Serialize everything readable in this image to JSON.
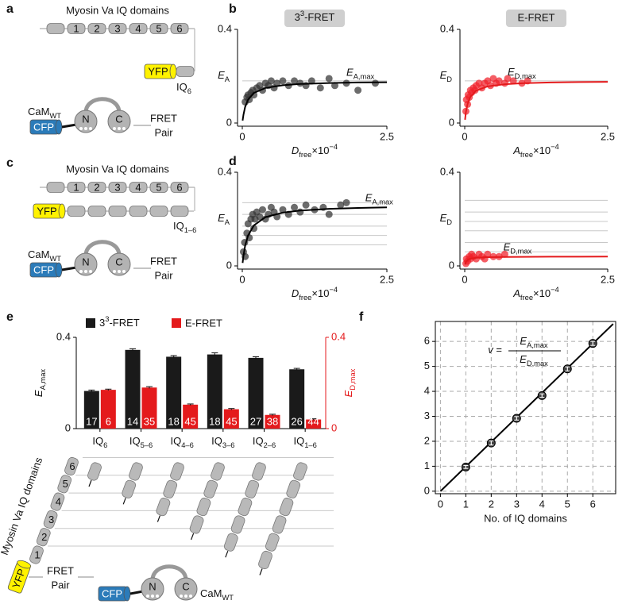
{
  "panel_labels": [
    "a",
    "b",
    "c",
    "d",
    "e",
    "f"
  ],
  "diagrams": {
    "a": {
      "title": "Myosin Va IQ domains",
      "domains": [
        "1",
        "2",
        "3",
        "4",
        "5",
        "6"
      ],
      "yfp": "YFP",
      "construct": [
        {
          "text": "IQ"
        },
        {
          "text": "6",
          "style": "sub"
        }
      ],
      "cam": [
        {
          "text": "CaM"
        },
        {
          "text": "WT",
          "style": "sub"
        }
      ],
      "cfp": "CFP",
      "lobes": [
        "N",
        "C"
      ],
      "pair": [
        "FRET",
        "Pair"
      ]
    },
    "c": {
      "title": "Myosin Va IQ domains",
      "domains": [
        "1",
        "2",
        "3",
        "4",
        "5",
        "6"
      ],
      "yfp": "YFP",
      "construct": [
        {
          "text": "IQ"
        },
        {
          "text": "1–6",
          "style": "sub"
        }
      ],
      "cam": [
        {
          "text": "CaM"
        },
        {
          "text": "WT",
          "style": "sub"
        }
      ],
      "cfp": "CFP",
      "lobes": [
        "N",
        "C"
      ],
      "pair": [
        "FRET",
        "Pair"
      ]
    },
    "e": {
      "title": "Myosin Va IQ domains",
      "domains": [
        "1",
        "2",
        "3",
        "4",
        "5",
        "6"
      ],
      "yfp": "YFP",
      "cam": [
        {
          "text": "CaM"
        },
        {
          "text": "WT",
          "style": "sub"
        }
      ],
      "cfp": "CFP",
      "lobes": [
        "N",
        "C"
      ],
      "pair": [
        "FRET",
        "Pair"
      ]
    }
  },
  "chart_data": [
    {
      "type": "scatter",
      "title": [
        {
          "text": "3"
        },
        {
          "text": "3",
          "style": "sup"
        },
        {
          "text": "-FRET"
        }
      ],
      "xlabel": [
        {
          "text": "D",
          "style": "italic"
        },
        {
          "text": "free",
          "style": "sub"
        },
        {
          "text": "×10"
        },
        {
          "text": "−4",
          "style": "sup"
        }
      ],
      "ylabel": [
        {
          "text": "E",
          "style": "italic"
        },
        {
          "text": "A",
          "style": "sub"
        }
      ],
      "annotation": [
        {
          "text": "E",
          "style": "italic"
        },
        {
          "text": "A,max",
          "style": "sub"
        }
      ],
      "xlim": [
        0,
        2.5
      ],
      "ylim": [
        0,
        0.4
      ],
      "xticks": [
        0,
        2.5
      ],
      "yticks": [
        0,
        0.4
      ],
      "reference_lines": [
        0.18
      ],
      "series": [
        {
          "color": "#333333",
          "x": [
            0.05,
            0.08,
            0.1,
            0.12,
            0.15,
            0.18,
            0.2,
            0.25,
            0.3,
            0.35,
            0.4,
            0.45,
            0.5,
            0.55,
            0.6,
            0.7,
            0.8,
            0.9,
            1.0,
            1.1,
            1.2,
            1.35,
            1.5,
            1.6,
            1.8,
            2.0,
            2.3
          ],
          "values": [
            0.09,
            0.11,
            0.12,
            0.1,
            0.13,
            0.14,
            0.12,
            0.15,
            0.16,
            0.14,
            0.17,
            0.16,
            0.18,
            0.15,
            0.17,
            0.18,
            0.16,
            0.18,
            0.17,
            0.16,
            0.18,
            0.15,
            0.19,
            0.16,
            0.17,
            0.14,
            0.17
          ]
        },
        {
          "type": "line",
          "color": "#000000",
          "x": [
            0.005,
            0.02,
            0.05,
            0.1,
            0.2,
            0.4,
            0.7,
            1,
            1.5,
            2,
            2.5
          ],
          "values": [
            0.0106,
            0.036,
            0.0692,
            0.1,
            0.1286,
            0.15,
            0.1615,
            0.1667,
            0.1709,
            0.1731,
            0.1744
          ]
        }
      ]
    },
    {
      "type": "scatter",
      "title": "E-FRET",
      "xlabel": [
        {
          "text": "A",
          "style": "italic"
        },
        {
          "text": "free",
          "style": "sub"
        },
        {
          "text": "×10"
        },
        {
          "text": "−4",
          "style": "sup"
        }
      ],
      "ylabel": [
        {
          "text": "E",
          "style": "italic"
        },
        {
          "text": "D",
          "style": "sub"
        }
      ],
      "annotation": [
        {
          "text": "E",
          "style": "italic"
        },
        {
          "text": "D,max",
          "style": "sub"
        }
      ],
      "xlim": [
        0,
        2.5
      ],
      "ylim": [
        0,
        0.4
      ],
      "xticks": [
        0,
        2.5
      ],
      "yticks": [
        0,
        0.4
      ],
      "reference_lines": [
        0.18
      ],
      "series": [
        {
          "color": "#f0202a",
          "x": [
            0.02,
            0.03,
            0.05,
            0.06,
            0.08,
            0.1,
            0.12,
            0.15,
            0.18,
            0.2,
            0.25,
            0.3,
            0.35,
            0.4,
            0.45,
            0.5,
            0.55,
            0.6,
            0.7,
            0.75,
            0.85,
            1.0,
            1.1
          ],
          "values": [
            0.05,
            0.1,
            0.08,
            0.12,
            0.11,
            0.14,
            0.13,
            0.15,
            0.14,
            0.16,
            0.17,
            0.15,
            0.17,
            0.18,
            0.16,
            0.19,
            0.17,
            0.18,
            0.17,
            0.19,
            0.18,
            0.17,
            0.18
          ]
        },
        {
          "type": "line",
          "color": "#e41a1c",
          "x": [
            0.005,
            0.02,
            0.05,
            0.1,
            0.2,
            0.4,
            0.7,
            1,
            1.5,
            2,
            2.5
          ],
          "values": [
            0.0138,
            0.045,
            0.0818,
            0.1125,
            0.1385,
            0.1565,
            0.1658,
            0.1698,
            0.1731,
            0.1748,
            0.1758
          ]
        }
      ]
    },
    {
      "type": "scatter",
      "xlabel": [
        {
          "text": "D",
          "style": "italic"
        },
        {
          "text": "free",
          "style": "sub"
        },
        {
          "text": "×10"
        },
        {
          "text": "−4",
          "style": "sup"
        }
      ],
      "ylabel": [
        {
          "text": "E",
          "style": "italic"
        },
        {
          "text": "A",
          "style": "sub"
        }
      ],
      "annotation": [
        {
          "text": "E",
          "style": "italic"
        },
        {
          "text": "A,max",
          "style": "sub"
        }
      ],
      "xlim": [
        0,
        2.5
      ],
      "ylim": [
        0,
        0.4
      ],
      "xticks": [
        0,
        2.5
      ],
      "yticks": [
        0,
        0.4
      ],
      "reference_lines": [
        0.09,
        0.13,
        0.17,
        0.22,
        0.27
      ],
      "series": [
        {
          "color": "#333333",
          "x": [
            0.02,
            0.04,
            0.05,
            0.08,
            0.1,
            0.12,
            0.15,
            0.18,
            0.2,
            0.22,
            0.25,
            0.3,
            0.35,
            0.4,
            0.45,
            0.5,
            0.55,
            0.6,
            0.7,
            0.8,
            0.9,
            1.0,
            1.1,
            1.25,
            1.4,
            1.5,
            1.7,
            1.8
          ],
          "values": [
            0.06,
            0.1,
            0.04,
            0.14,
            0.18,
            0.12,
            0.2,
            0.22,
            0.16,
            0.2,
            0.23,
            0.21,
            0.24,
            0.2,
            0.22,
            0.25,
            0.23,
            0.21,
            0.24,
            0.22,
            0.25,
            0.23,
            0.26,
            0.24,
            0.25,
            0.22,
            0.26,
            0.27
          ]
        },
        {
          "type": "line",
          "color": "#000000",
          "x": [
            0.005,
            0.02,
            0.05,
            0.1,
            0.2,
            0.4,
            0.7,
            1,
            1.5,
            2,
            2.5
          ],
          "values": [
            0.0124,
            0.0433,
            0.0867,
            0.13,
            0.1733,
            0.208,
            0.2275,
            0.2364,
            0.2438,
            0.2476,
            0.25
          ]
        }
      ]
    },
    {
      "type": "scatter",
      "xlabel": [
        {
          "text": "A",
          "style": "italic"
        },
        {
          "text": "free",
          "style": "sub"
        },
        {
          "text": "×10"
        },
        {
          "text": "−4",
          "style": "sup"
        }
      ],
      "ylabel": [
        {
          "text": "E",
          "style": "italic"
        },
        {
          "text": "D",
          "style": "sub"
        }
      ],
      "annotation": [
        {
          "text": "E",
          "style": "italic"
        },
        {
          "text": "D,max",
          "style": "sub"
        }
      ],
      "xlim": [
        0,
        2.5
      ],
      "ylim": [
        0,
        0.4
      ],
      "xticks": [
        0,
        2.5
      ],
      "yticks": [
        0,
        0.4
      ],
      "reference_lines": [
        0.06,
        0.1,
        0.15,
        0.19,
        0.23,
        0.28
      ],
      "series": [
        {
          "color": "#f0202a",
          "x": [
            0.02,
            0.03,
            0.05,
            0.08,
            0.1,
            0.12,
            0.15,
            0.2,
            0.25,
            0.3,
            0.35,
            0.4,
            0.5,
            0.6,
            0.7
          ],
          "values": [
            0.01,
            0.03,
            0.02,
            0.04,
            0.03,
            0.05,
            0.04,
            0.03,
            0.05,
            0.04,
            0.03,
            0.05,
            0.04,
            0.04,
            0.05
          ]
        },
        {
          "type": "line",
          "color": "#e41a1c",
          "x": [
            0.005,
            0.02,
            0.05,
            0.1,
            0.2,
            0.4,
            0.7,
            1,
            1.5,
            2,
            2.5
          ],
          "values": [
            0.0057,
            0.016,
            0.025,
            0.0308,
            0.0348,
            0.0372,
            0.0384,
            0.0388,
            0.0392,
            0.0394,
            0.0395
          ]
        }
      ]
    },
    {
      "type": "bar",
      "categories": [
        [
          {
            "text": "IQ"
          },
          {
            "text": "6",
            "style": "sub"
          }
        ],
        [
          {
            "text": "IQ"
          },
          {
            "text": "5–6",
            "style": "sub"
          }
        ],
        [
          {
            "text": "IQ"
          },
          {
            "text": "4–6",
            "style": "sub"
          }
        ],
        [
          {
            "text": "IQ"
          },
          {
            "text": "3–6",
            "style": "sub"
          }
        ],
        [
          {
            "text": "IQ"
          },
          {
            "text": "2–6",
            "style": "sub"
          }
        ],
        [
          {
            "text": "IQ"
          },
          {
            "text": "1–6",
            "style": "sub"
          }
        ]
      ],
      "ylabel": [
        {
          "text": "E",
          "style": "italic"
        },
        {
          "text": "A,max",
          "style": "sub"
        }
      ],
      "y2label": [
        {
          "text": "E",
          "style": "italic"
        },
        {
          "text": "D,max",
          "style": "sub"
        }
      ],
      "y2color": "#e41a1c",
      "ylim": [
        0,
        0.4
      ],
      "yticks": [
        0,
        0.4
      ],
      "y2lim": [
        0,
        0.4
      ],
      "y2ticks": [
        0,
        0.4
      ],
      "series": [
        {
          "name": [
            {
              "text": "3"
            },
            {
              "text": "3",
              "style": "sup"
            },
            {
              "text": "-FRET"
            }
          ],
          "color": "#1a1a1a",
          "values": [
            0.165,
            0.345,
            0.315,
            0.325,
            0.31,
            0.26
          ],
          "errors": [
            0.004,
            0.005,
            0.005,
            0.007,
            0.005,
            0.004
          ],
          "n": [
            17,
            14,
            18,
            18,
            27,
            26
          ]
        },
        {
          "name": "E-FRET",
          "color": "#e41a1c",
          "axis": "y2",
          "values": [
            0.17,
            0.18,
            0.105,
            0.085,
            0.06,
            0.04
          ],
          "errors": [
            0.003,
            0.004,
            0.003,
            0.003,
            0.003,
            0.003
          ],
          "n": [
            6,
            35,
            45,
            45,
            38,
            44
          ]
        }
      ]
    },
    {
      "type": "scatter",
      "grid": "dashed",
      "xlabel": "No. of IQ domains",
      "formula": {
        "lhs": [
          {
            "text": "v",
            "style": "italic"
          },
          {
            "text": " ="
          }
        ],
        "numerator": [
          {
            "text": "E",
            "style": "italic"
          },
          {
            "text": "A,max",
            "style": "sub"
          }
        ],
        "denominator": [
          {
            "text": "E",
            "style": "italic"
          },
          {
            "text": "D,max",
            "style": "sub"
          }
        ]
      },
      "xlim": [
        -0.2,
        6.9
      ],
      "ylim": [
        -0.1,
        6.8
      ],
      "xticks": [
        0,
        1,
        2,
        3,
        4,
        5,
        6
      ],
      "yticks": [
        0,
        1,
        2,
        3,
        4,
        5,
        6
      ],
      "series": [
        {
          "type": "line",
          "color": "#000000",
          "x": [
            0,
            6.8
          ],
          "values": [
            0,
            6.7
          ]
        },
        {
          "color": "#444444",
          "x": [
            1,
            2,
            3,
            4,
            5,
            6
          ],
          "values": [
            0.97,
            1.93,
            2.92,
            3.83,
            4.9,
            5.92
          ],
          "errors": [
            0.06,
            0.08,
            0.07,
            0.07,
            0.08,
            0.08
          ]
        }
      ]
    }
  ]
}
